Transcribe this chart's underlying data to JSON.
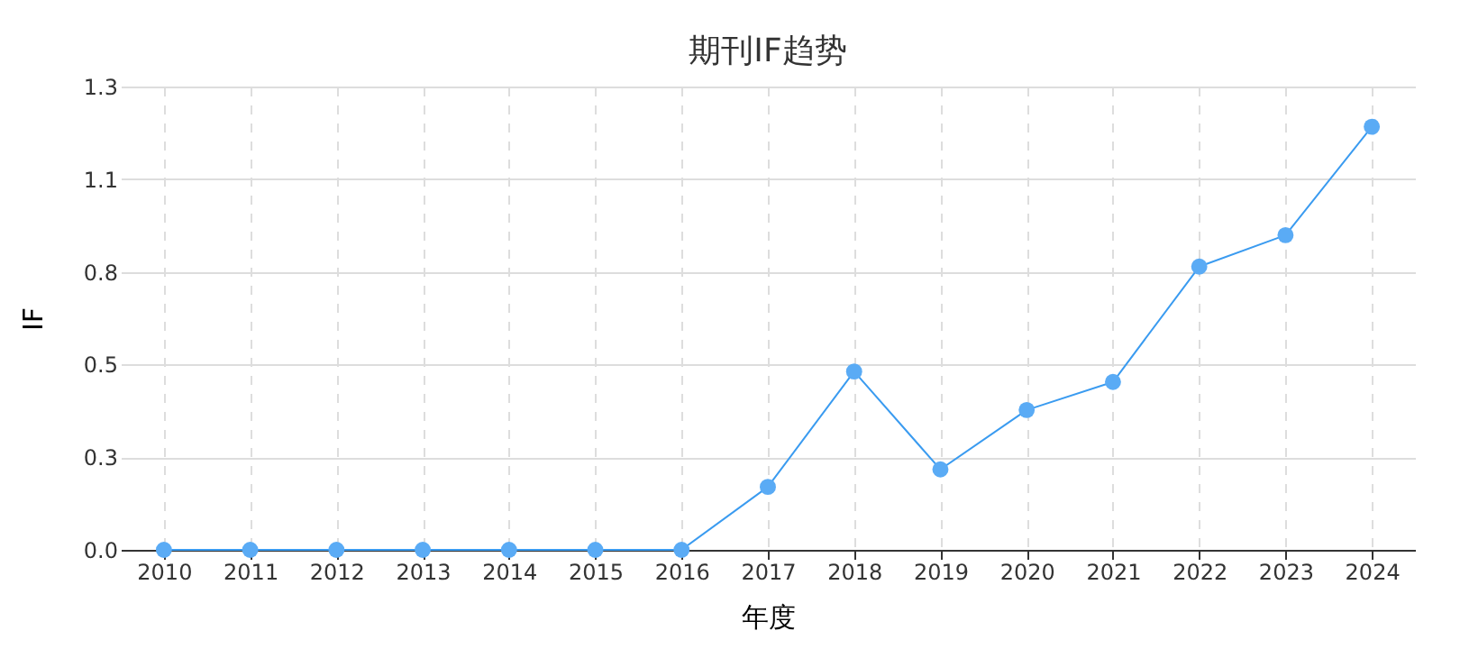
{
  "chart_data": {
    "type": "line",
    "title": "期刊IF趋势",
    "xlabel": "年度",
    "ylabel": "IF",
    "categories": [
      "2010",
      "2011",
      "2012",
      "2013",
      "2014",
      "2015",
      "2016",
      "2017",
      "2018",
      "2019",
      "2020",
      "2021",
      "2022",
      "2023",
      "2024"
    ],
    "series": [
      {
        "color": "#3a9bf0",
        "values": [
          0,
          0,
          0,
          0,
          0,
          0,
          0,
          0.18,
          0.51,
          0.23,
          0.4,
          0.48,
          0.81,
          0.9,
          1.21
        ]
      }
    ],
    "ylim": [
      0,
      1.325
    ],
    "yticks": [
      {
        "value": 0,
        "label": "0.0"
      },
      {
        "value": 0.265,
        "label": "0.3"
      },
      {
        "value": 0.53,
        "label": "0.5"
      },
      {
        "value": 0.795,
        "label": "0.8"
      },
      {
        "value": 1.06,
        "label": "1.1"
      },
      {
        "value": 1.325,
        "label": "1.3"
      }
    ],
    "grid": true,
    "marker": "circle",
    "line_style": "solid"
  }
}
